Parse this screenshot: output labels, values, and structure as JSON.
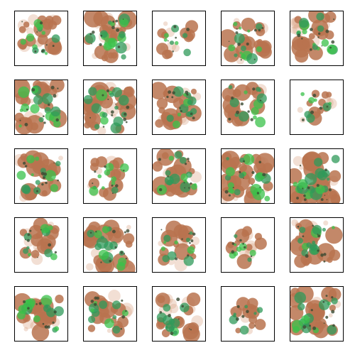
{
  "title": "",
  "grid": {
    "rows": 5,
    "cols": 5
  },
  "palette": {
    "background": "#ffffff",
    "frame": "#000000",
    "brown": "#b8734f",
    "brown_light": "#d9a283",
    "green": "#2f9a5a",
    "green_bright": "#39c24a",
    "dark": "#3a4a32"
  },
  "samples": [
    {
      "id": 1,
      "coverage": 0.35,
      "seed": 11
    },
    {
      "id": 2,
      "coverage": 0.55,
      "seed": 23
    },
    {
      "id": 3,
      "coverage": 0.12,
      "seed": 37
    },
    {
      "id": 4,
      "coverage": 0.45,
      "seed": 41
    },
    {
      "id": 5,
      "coverage": 0.55,
      "seed": 53
    },
    {
      "id": 6,
      "coverage": 0.6,
      "seed": 67
    },
    {
      "id": 7,
      "coverage": 0.62,
      "seed": 71
    },
    {
      "id": 8,
      "coverage": 0.45,
      "seed": 83
    },
    {
      "id": 9,
      "coverage": 0.4,
      "seed": 97
    },
    {
      "id": 10,
      "coverage": 0.15,
      "seed": 101
    },
    {
      "id": 11,
      "coverage": 0.45,
      "seed": 113
    },
    {
      "id": 12,
      "coverage": 0.25,
      "seed": 127
    },
    {
      "id": 13,
      "coverage": 0.5,
      "seed": 131
    },
    {
      "id": 14,
      "coverage": 0.7,
      "seed": 149
    },
    {
      "id": 15,
      "coverage": 0.65,
      "seed": 151
    },
    {
      "id": 16,
      "coverage": 0.3,
      "seed": 163
    },
    {
      "id": 17,
      "coverage": 0.55,
      "seed": 173
    },
    {
      "id": 18,
      "coverage": 0.3,
      "seed": 181
    },
    {
      "id": 19,
      "coverage": 0.18,
      "seed": 191
    },
    {
      "id": 20,
      "coverage": 0.45,
      "seed": 199
    },
    {
      "id": 21,
      "coverage": 0.5,
      "seed": 211
    },
    {
      "id": 22,
      "coverage": 0.35,
      "seed": 223
    },
    {
      "id": 23,
      "coverage": 0.35,
      "seed": 227
    },
    {
      "id": 24,
      "coverage": 0.12,
      "seed": 239
    },
    {
      "id": 25,
      "coverage": 0.55,
      "seed": 241
    }
  ]
}
